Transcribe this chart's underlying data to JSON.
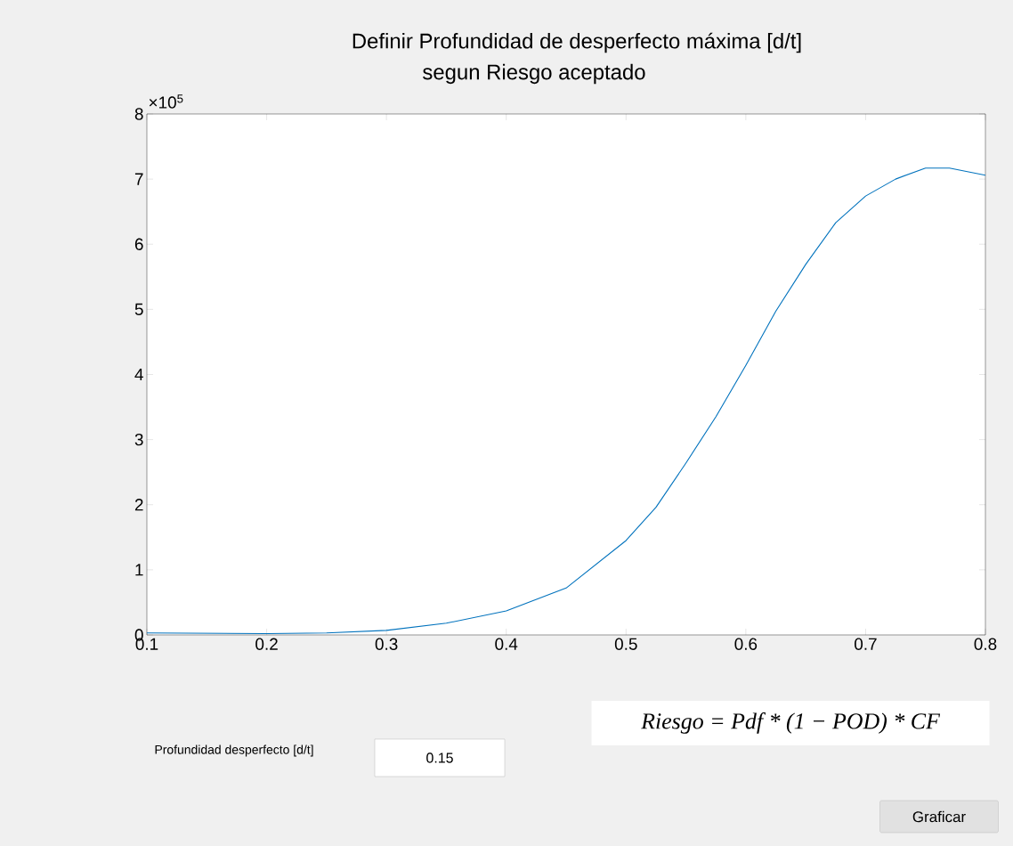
{
  "chart_data": {
    "type": "line",
    "title": "Definir Profundidad de desperfecto máxima [d/t]",
    "subtitle": "segun Riesgo aceptado",
    "x": [
      0.1,
      0.2,
      0.25,
      0.3,
      0.35,
      0.4,
      0.45,
      0.5,
      0.525,
      0.55,
      0.575,
      0.6,
      0.625,
      0.65,
      0.675,
      0.7,
      0.725,
      0.75,
      0.77,
      0.8
    ],
    "series": [
      {
        "color": "#0072bd",
        "values": [
          0.03,
          0.02,
          0.03,
          0.07,
          0.18,
          0.37,
          0.72,
          1.45,
          1.96,
          2.64,
          3.35,
          4.14,
          4.97,
          5.69,
          6.33,
          6.74,
          7.0,
          7.17,
          7.17,
          7.06
        ]
      }
    ],
    "xlim": [
      0.1,
      0.8
    ],
    "ylim": [
      0,
      8
    ],
    "xticks": [
      0.1,
      0.2,
      0.3,
      0.4,
      0.5,
      0.6,
      0.7,
      0.8
    ],
    "yticks": [
      0,
      1,
      2,
      3,
      4,
      5,
      6,
      7,
      8
    ],
    "grid": false,
    "annotations": [
      "×10$^{5}$",
      "Riesgo = Pdf * (1 − POD) * CF",
      "Profundidad desperfecto [d/t]",
      "0.15",
      "Graficar"
    ]
  }
}
